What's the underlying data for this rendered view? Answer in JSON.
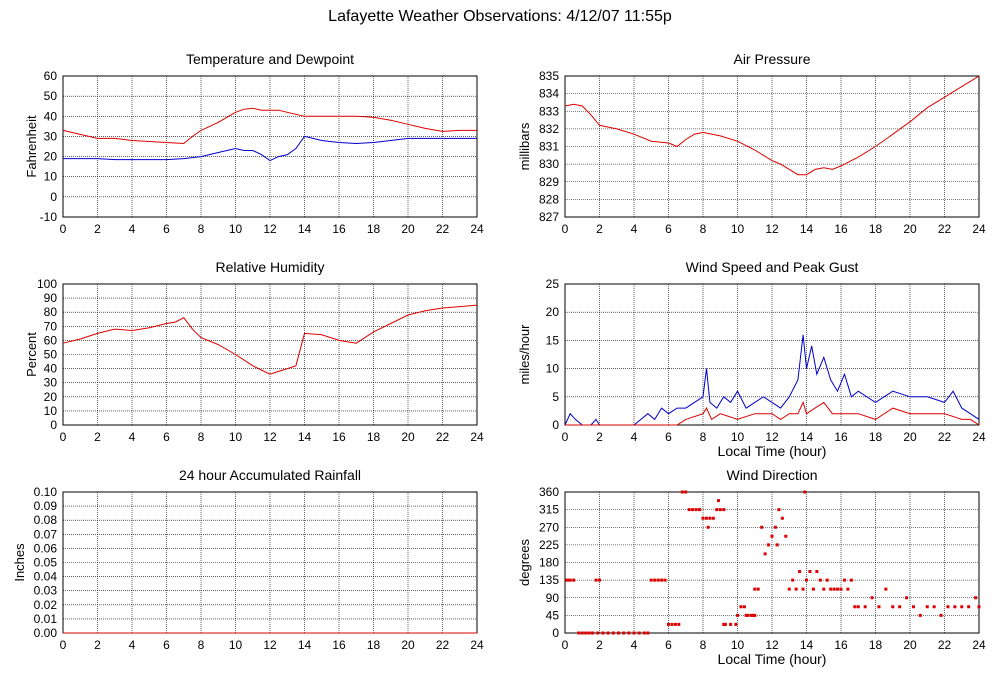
{
  "page": {
    "title": "Lafayette Weather Observations: 4/12/07 11:55p"
  },
  "colors": {
    "red": "#dd0000",
    "blue": "#0000cc",
    "grid": "#000000"
  },
  "chart_data": [
    {
      "id": "temp",
      "type": "line",
      "title": "Temperature and Dewpoint",
      "ylabel": "Fahrenheit",
      "xlabel": "",
      "xlim": [
        0,
        24
      ],
      "ylim": [
        -10,
        60
      ],
      "xticks": [
        0,
        2,
        4,
        6,
        8,
        10,
        12,
        14,
        16,
        18,
        20,
        22,
        24
      ],
      "yticks": [
        -10,
        0,
        10,
        20,
        30,
        40,
        50,
        60
      ],
      "grid": true,
      "series": [
        {
          "color": "red",
          "x": [
            0,
            1,
            2,
            3,
            4,
            5,
            6,
            7,
            7.5,
            8,
            8.5,
            9,
            9.5,
            10,
            10.5,
            11,
            11.5,
            12,
            12.5,
            13,
            13.5,
            14,
            15,
            16,
            17,
            18,
            19,
            20,
            21,
            22,
            23,
            24
          ],
          "y": [
            33,
            31,
            29,
            29,
            28,
            27.5,
            27,
            26.5,
            30,
            33,
            35,
            37,
            39.5,
            42,
            43.5,
            44,
            43,
            43,
            43,
            42,
            41,
            40,
            40,
            40,
            40,
            39.5,
            38,
            36,
            34,
            32.5,
            33,
            33
          ]
        },
        {
          "color": "blue",
          "x": [
            0,
            1,
            2,
            3,
            4,
            5,
            6,
            7,
            8,
            9,
            10,
            10.5,
            11,
            11.5,
            12,
            12.5,
            13,
            13.5,
            14,
            14.5,
            15,
            16,
            17,
            18,
            19,
            20,
            21,
            22,
            23,
            24
          ],
          "y": [
            19,
            19,
            19,
            18.5,
            18.5,
            18.5,
            18.5,
            19,
            20,
            22,
            24,
            23,
            23,
            21,
            18,
            20,
            21,
            24,
            30,
            29,
            28,
            27,
            26.5,
            27,
            28,
            29,
            29,
            29,
            29,
            29
          ]
        }
      ]
    },
    {
      "id": "pressure",
      "type": "line",
      "title": "Air Pressure",
      "ylabel": "millibars",
      "xlabel": "",
      "xlim": [
        0,
        24
      ],
      "ylim": [
        827,
        835
      ],
      "xticks": [
        0,
        2,
        4,
        6,
        8,
        10,
        12,
        14,
        16,
        18,
        20,
        22,
        24
      ],
      "yticks": [
        827,
        828,
        829,
        830,
        831,
        832,
        833,
        834,
        835
      ],
      "grid": true,
      "series": [
        {
          "color": "red",
          "x": [
            0,
            0.5,
            1,
            1.5,
            2,
            3,
            4,
            5,
            6,
            6.5,
            7,
            7.5,
            8,
            9,
            10,
            11,
            12,
            12.5,
            13,
            13.5,
            14,
            14.5,
            15,
            15.5,
            16,
            17,
            18,
            19,
            20,
            21,
            22,
            23,
            23.5,
            24
          ],
          "y": [
            833.3,
            833.4,
            833.3,
            832.8,
            832.2,
            832.0,
            831.7,
            831.3,
            831.2,
            831.0,
            831.4,
            831.7,
            831.8,
            831.6,
            831.3,
            830.8,
            830.2,
            830.0,
            829.7,
            829.4,
            829.4,
            829.7,
            829.8,
            829.7,
            829.9,
            830.4,
            831.0,
            831.7,
            832.4,
            833.2,
            833.8,
            834.4,
            834.7,
            835.0
          ]
        }
      ]
    },
    {
      "id": "humidity",
      "type": "line",
      "title": "Relative Humidity",
      "ylabel": "Percent",
      "xlabel": "",
      "xlim": [
        0,
        24
      ],
      "ylim": [
        0,
        100
      ],
      "xticks": [
        0,
        2,
        4,
        6,
        8,
        10,
        12,
        14,
        16,
        18,
        20,
        22,
        24
      ],
      "yticks": [
        0,
        10,
        20,
        30,
        40,
        50,
        60,
        70,
        80,
        90,
        100
      ],
      "grid": true,
      "series": [
        {
          "color": "red",
          "x": [
            0,
            1,
            2,
            3,
            4,
            5,
            6,
            6.5,
            7,
            7.5,
            8,
            9,
            10,
            10.5,
            11,
            11.5,
            12,
            12.5,
            13,
            13.5,
            14,
            15,
            16,
            17,
            18,
            19,
            20,
            21,
            22,
            23,
            24
          ],
          "y": [
            58,
            61,
            65,
            68,
            67,
            69,
            72,
            73,
            76,
            68,
            62,
            57,
            50,
            46,
            42,
            39,
            36,
            38,
            40,
            42,
            65,
            64,
            60,
            58,
            66,
            72,
            78,
            81,
            83,
            84,
            85
          ]
        }
      ]
    },
    {
      "id": "wind",
      "type": "line",
      "title": "Wind Speed and Peak Gust",
      "ylabel": "miles/hour",
      "xlabel": "Local Time (hour)",
      "xlim": [
        0,
        24
      ],
      "ylim": [
        0,
        25
      ],
      "xticks": [
        0,
        2,
        4,
        6,
        8,
        10,
        12,
        14,
        16,
        18,
        20,
        22,
        24
      ],
      "yticks": [
        0,
        5,
        10,
        15,
        20,
        25
      ],
      "grid": true,
      "series": [
        {
          "color": "blue",
          "x": [
            0,
            0.3,
            0.6,
            1,
            1.5,
            1.8,
            2,
            2.5,
            4,
            4.4,
            4.8,
            5.2,
            5.6,
            6,
            6.5,
            7,
            7.5,
            8,
            8.2,
            8.4,
            8.8,
            9.2,
            9.6,
            10,
            10.5,
            11,
            11.5,
            12,
            12.5,
            13,
            13.5,
            13.8,
            14,
            14.3,
            14.6,
            15,
            15.4,
            15.8,
            16.2,
            16.6,
            17,
            18,
            19,
            20,
            21,
            22,
            22.5,
            23,
            23.5,
            24
          ],
          "y": [
            0,
            2,
            1,
            0,
            0,
            1,
            0,
            0,
            0,
            1,
            2,
            1,
            3,
            2,
            3,
            3,
            4,
            5,
            10,
            4,
            3,
            5,
            4,
            6,
            3,
            4,
            5,
            4,
            3,
            5,
            8,
            16,
            10,
            14,
            9,
            12,
            8,
            6,
            9,
            5,
            6,
            4,
            6,
            5,
            5,
            4,
            6,
            3,
            2,
            1
          ]
        },
        {
          "color": "red",
          "x": [
            0,
            6,
            6.5,
            7,
            8,
            8.2,
            8.5,
            9,
            10,
            11,
            12,
            12.5,
            13,
            13.5,
            13.8,
            14,
            14.5,
            15,
            15.5,
            16,
            17,
            18,
            19,
            20,
            21,
            22,
            23,
            23.5,
            24
          ],
          "y": [
            0,
            0,
            0,
            1,
            2,
            3,
            1,
            2,
            1,
            2,
            2,
            1,
            2,
            2,
            4,
            2,
            3,
            4,
            2,
            2,
            2,
            1,
            3,
            2,
            2,
            2,
            1,
            1,
            0
          ]
        }
      ]
    },
    {
      "id": "rain",
      "type": "line",
      "title": "24 hour Accumulated Rainfall",
      "ylabel": "Inches",
      "xlabel": "",
      "xlim": [
        0,
        24
      ],
      "ylim": [
        0,
        0.1
      ],
      "xticks": [
        0,
        2,
        4,
        6,
        8,
        10,
        12,
        14,
        16,
        18,
        20,
        22,
        24
      ],
      "yticks": [
        0.0,
        0.01,
        0.02,
        0.03,
        0.04,
        0.05,
        0.06,
        0.07,
        0.08,
        0.09,
        0.1
      ],
      "grid": true,
      "series": [
        {
          "color": "red",
          "x": [
            0,
            24
          ],
          "y": [
            0,
            0
          ]
        }
      ]
    },
    {
      "id": "winddir",
      "type": "scatter",
      "title": "Wind Direction",
      "ylabel": "degrees",
      "xlabel": "Local Time (hour)",
      "xlim": [
        0,
        24
      ],
      "ylim": [
        0,
        360
      ],
      "xticks": [
        0,
        2,
        4,
        6,
        8,
        10,
        12,
        14,
        16,
        18,
        20,
        22,
        24
      ],
      "yticks": [
        0,
        45,
        90,
        135,
        180,
        225,
        270,
        315,
        360
      ],
      "grid": true,
      "series": [
        {
          "color": "red",
          "x": [
            0.1,
            0.2,
            0.3,
            0.5,
            1.8,
            2.0,
            0.8,
            1.0,
            1.2,
            1.4,
            1.6,
            1.9,
            2.2,
            2.5,
            2.8,
            3.1,
            3.4,
            3.7,
            4.0,
            4.3,
            4.6,
            4.8,
            5.0,
            5.2,
            5.4,
            5.6,
            5.8,
            6.0,
            6.2,
            6.4,
            6.6,
            6.8,
            7.0,
            7.2,
            7.4,
            7.6,
            7.8,
            8.0,
            8.2,
            8.4,
            8.6,
            8.8,
            9.0,
            9.2,
            8.9,
            9.3,
            9.6,
            9.9,
            10.0,
            10.2,
            10.4,
            10.6,
            10.8,
            11.0,
            11.2,
            10.9,
            11.4,
            11.6,
            11.8,
            12.0,
            12.2,
            12.4,
            12.6,
            12.8,
            13.0,
            13.2,
            13.4,
            13.6,
            13.8,
            14.0,
            14.2,
            14.4,
            14.6,
            14.8,
            15.0,
            15.2,
            15.4,
            15.6,
            15.8,
            16.0,
            16.2,
            16.4,
            16.6,
            16.8,
            17.0,
            17.4,
            17.8,
            18.2,
            18.6,
            19.0,
            19.4,
            19.8,
            20.2,
            20.6,
            21.0,
            21.4,
            21.8,
            22.2,
            22.6,
            23.0,
            23.4,
            23.8,
            24.0,
            13.9,
            12.3,
            11.0,
            10.5,
            9.2,
            8.3
          ],
          "y": [
            135,
            135,
            135,
            135,
            135,
            135,
            0,
            0,
            0,
            0,
            0,
            0,
            0,
            0,
            0,
            0,
            0,
            0,
            0,
            0,
            0,
            0,
            135,
            135,
            135,
            135,
            135,
            22,
            22,
            22,
            22,
            360,
            360,
            315,
            315,
            315,
            315,
            293,
            293,
            293,
            293,
            315,
            315,
            315,
            338,
            22,
            22,
            22,
            45,
            67,
            67,
            45,
            45,
            45,
            112,
            45,
            270,
            202,
            225,
            247,
            270,
            315,
            293,
            247,
            112,
            135,
            112,
            157,
            112,
            135,
            157,
            112,
            157,
            135,
            112,
            135,
            112,
            112,
            112,
            112,
            135,
            112,
            135,
            67,
            67,
            67,
            90,
            67,
            112,
            67,
            67,
            90,
            67,
            45,
            67,
            67,
            45,
            67,
            67,
            67,
            67,
            90,
            67,
            360,
            225,
            112,
            45,
            22,
            270
          ]
        }
      ]
    }
  ]
}
